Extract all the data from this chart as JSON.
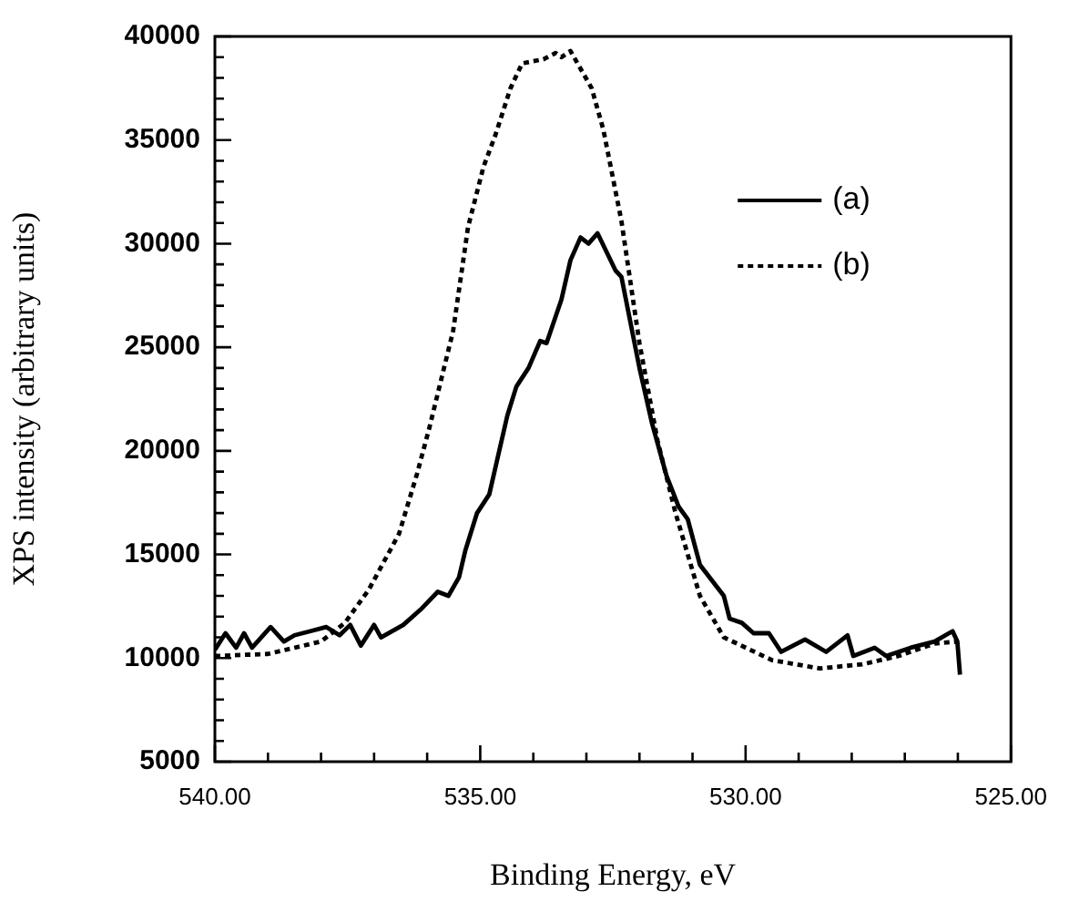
{
  "chart_data": {
    "type": "line",
    "xlabel": "Binding Energy, eV",
    "ylabel": "XPS intensity (arbitrary units)",
    "xlim": [
      540,
      525
    ],
    "xticks": [
      {
        "value": 540,
        "label": "540.00"
      },
      {
        "value": 539,
        "label": null
      },
      {
        "value": 538,
        "label": null
      },
      {
        "value": 537,
        "label": null
      },
      {
        "value": 536,
        "label": null
      },
      {
        "value": 535,
        "label": "535.00"
      },
      {
        "value": 534,
        "label": null
      },
      {
        "value": 533,
        "label": null
      },
      {
        "value": 532,
        "label": null
      },
      {
        "value": 531,
        "label": null
      },
      {
        "value": 530,
        "label": "530.00"
      },
      {
        "value": 529,
        "label": null
      },
      {
        "value": 528,
        "label": null
      },
      {
        "value": 527,
        "label": null
      },
      {
        "value": 526,
        "label": null
      },
      {
        "value": 525,
        "label": "525.00"
      }
    ],
    "ylim": [
      5000,
      40000
    ],
    "yticks": [
      5000,
      {
        "value": 6000,
        "label": null
      },
      {
        "value": 7000,
        "label": null
      },
      {
        "value": 8000,
        "label": null
      },
      {
        "value": 9000,
        "label": null
      },
      10000,
      {
        "value": 11000,
        "label": null
      },
      {
        "value": 12000,
        "label": null
      },
      {
        "value": 13000,
        "label": null
      },
      {
        "value": 14000,
        "label": null
      },
      15000,
      {
        "value": 16000,
        "label": null
      },
      {
        "value": 17000,
        "label": null
      },
      {
        "value": 18000,
        "label": null
      },
      {
        "value": 19000,
        "label": null
      },
      20000,
      {
        "value": 21000,
        "label": null
      },
      {
        "value": 22000,
        "label": null
      },
      {
        "value": 23000,
        "label": null
      },
      {
        "value": 24000,
        "label": null
      },
      25000,
      {
        "value": 26000,
        "label": null
      },
      {
        "value": 27000,
        "label": null
      },
      {
        "value": 28000,
        "label": null
      },
      {
        "value": 29000,
        "label": null
      },
      30000,
      {
        "value": 31000,
        "label": null
      },
      {
        "value": 32000,
        "label": null
      },
      {
        "value": 33000,
        "label": null
      },
      {
        "value": 34000,
        "label": null
      },
      35000,
      {
        "value": 36000,
        "label": null
      },
      {
        "value": 37000,
        "label": null
      },
      {
        "value": 38000,
        "label": null
      },
      {
        "value": 39000,
        "label": null
      },
      40000
    ],
    "grid": false,
    "legend": "top right",
    "marker": "none",
    "series": [
      {
        "name": "(a)",
        "color": "#000000",
        "line_style": "solid",
        "x": [
          540,
          539.8,
          539.6,
          539.45,
          539.3,
          538.95,
          538.7,
          538.5,
          538.2,
          537.9,
          537.65,
          537.45,
          537.25,
          537,
          536.87,
          536.45,
          536.1,
          535.8,
          535.6,
          535.4,
          535.28,
          535.06,
          534.83,
          534.49,
          534.32,
          534.09,
          533.87,
          533.75,
          533.47,
          533.3,
          533.11,
          532.96,
          532.79,
          532.45,
          532.34,
          532,
          531.77,
          531.49,
          531.26,
          531.09,
          530.86,
          530.41,
          530.3,
          530.07,
          529.85,
          529.56,
          529.33,
          528.88,
          528.48,
          528.08,
          527.97,
          527.57,
          527.35,
          526.89,
          526.44,
          526.1,
          526.01,
          525.96
        ],
        "values": [
          10400,
          11200,
          10500,
          11200,
          10500,
          11500,
          10800,
          11100,
          11300,
          11500,
          11100,
          11600,
          10600,
          11600,
          11000,
          11600,
          12400,
          13200,
          13000,
          13900,
          15200,
          17000,
          17900,
          21700,
          23100,
          24000,
          25300,
          25200,
          27300,
          29200,
          30300,
          30000,
          30500,
          28700,
          28400,
          24000,
          21400,
          18800,
          17300,
          16700,
          14500,
          13000,
          11900,
          11700,
          11200,
          11200,
          10300,
          10900,
          10300,
          11100,
          10100,
          10500,
          10100,
          10500,
          10800,
          11300,
          10800,
          9200
        ]
      },
      {
        "name": "(b)",
        "color": "#000000",
        "line_style": "dotted",
        "x": [
          540,
          539,
          538,
          537.55,
          537.1,
          536.53,
          536.19,
          535.96,
          535.51,
          535.23,
          534.94,
          534.72,
          534.43,
          534.21,
          533.81,
          533.58,
          533.47,
          533.3,
          532.9,
          532.68,
          532.34,
          532,
          531.66,
          531.32,
          531.09,
          530.86,
          530.41,
          529.5,
          528.6,
          527.8,
          527.12,
          526.44,
          525.99
        ],
        "values": [
          10100,
          10200,
          10800,
          11700,
          13300,
          16000,
          18900,
          21100,
          25800,
          30800,
          33700,
          35200,
          37500,
          38700,
          38900,
          39200,
          39000,
          39300,
          37500,
          35500,
          31100,
          25200,
          20500,
          17000,
          15000,
          13000,
          11000,
          9900,
          9500,
          9700,
          10100,
          10700,
          10800
        ]
      }
    ]
  }
}
